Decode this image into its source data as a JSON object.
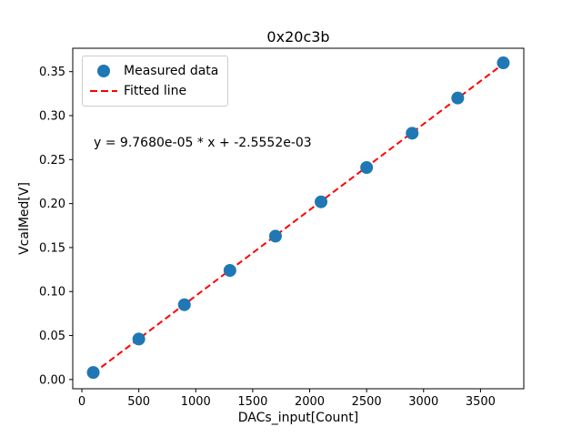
{
  "figure": {
    "background": "#ffffff"
  },
  "chart_data": {
    "type": "scatter",
    "title": "0x20c3b",
    "xlabel": "DACs_input[Count]",
    "ylabel": "VcalMed[V]",
    "x": [
      100,
      500,
      900,
      1300,
      1700,
      2100,
      2500,
      2900,
      3300,
      3700
    ],
    "y": [
      0.008,
      0.046,
      0.085,
      0.124,
      0.163,
      0.202,
      0.241,
      0.28,
      0.32,
      0.36
    ],
    "xticks": [
      0,
      500,
      1000,
      1500,
      2000,
      2500,
      3000,
      3500
    ],
    "yticks": [
      0.0,
      0.05,
      0.1,
      0.15,
      0.2,
      0.25,
      0.3,
      0.35
    ],
    "xlim": [
      -80,
      3880
    ],
    "ylim": [
      -0.0105,
      0.3766
    ],
    "grid": false,
    "marker_color": "#1f77b4",
    "fit": {
      "slope": 9.768e-05,
      "intercept": -0.0025552,
      "color": "#ff0000",
      "x_start": 100,
      "x_end": 3700
    },
    "annotation": "y = 9.7680e-05 * x + -2.5552e-03",
    "legend": {
      "position": "upper left",
      "items": [
        {
          "label": "Measured data",
          "marker": "circle",
          "color": "#1f77b4"
        },
        {
          "label": "Fitted line",
          "marker": "dashed-line",
          "color": "#ff0000"
        }
      ]
    }
  }
}
